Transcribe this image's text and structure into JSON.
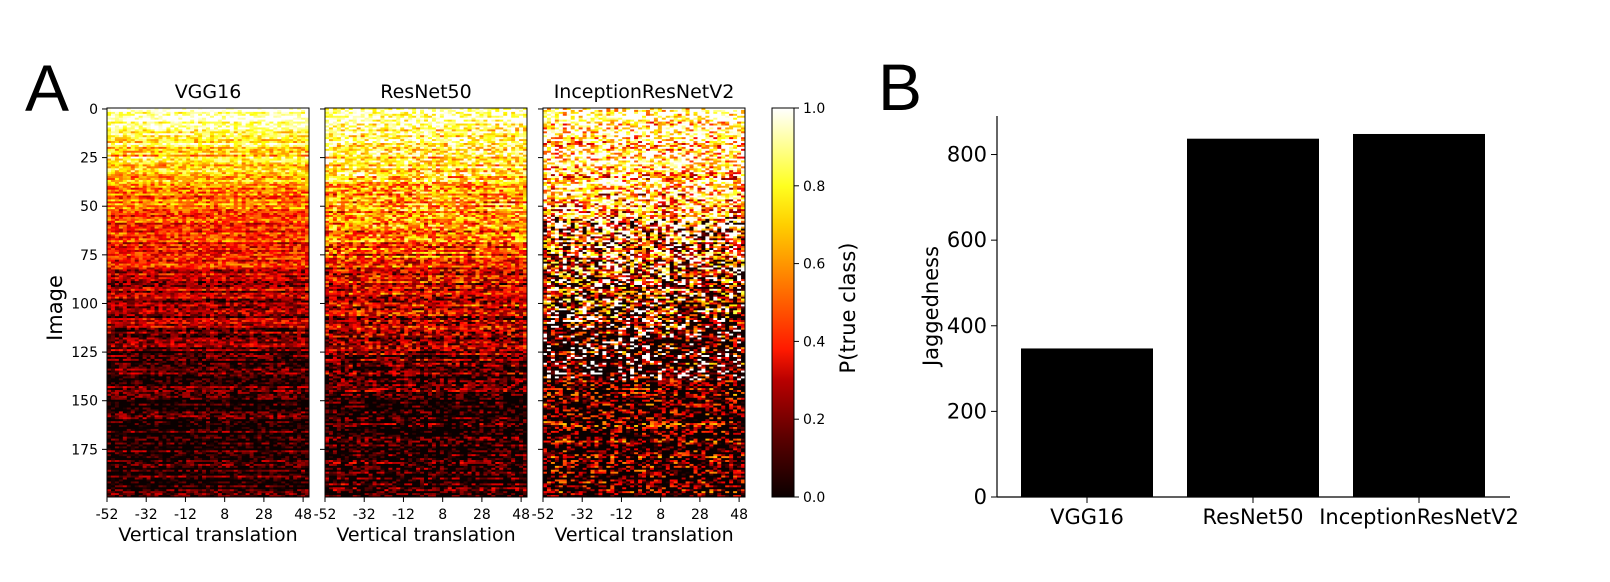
{
  "panel_labels": [
    "A",
    "B"
  ],
  "chart_data": [
    {
      "type": "heatmap",
      "panel": "A",
      "subplots": [
        {
          "title": "VGG16",
          "xlabel": "Vertical translation",
          "profile": {
            "bright_until": 30,
            "red_until": 95,
            "fade_until": 140,
            "noise": 0.18
          }
        },
        {
          "title": "ResNet50",
          "xlabel": "Vertical translation",
          "profile": {
            "bright_until": 40,
            "red_until": 110,
            "fade_until": 150,
            "noise": 0.25
          }
        },
        {
          "title": "InceptionResNetV2",
          "xlabel": "Vertical translation",
          "profile": {
            "bright_until": 60,
            "red_until": 105,
            "fade_until": 135,
            "noise": 0.5
          }
        }
      ],
      "ylabel": "Image",
      "x_ticks": [
        "-52",
        "-32",
        "-12",
        "8",
        "28",
        "48"
      ],
      "x_tick_values": [
        -52,
        -32,
        -12,
        8,
        28,
        48
      ],
      "xlim": [
        -52,
        51
      ],
      "y_ticks": [
        "0",
        "25",
        "50",
        "75",
        "100",
        "125",
        "150",
        "175"
      ],
      "y_tick_values": [
        0,
        25,
        50,
        75,
        100,
        125,
        150,
        175
      ],
      "ylim": [
        0,
        200
      ],
      "colorbar": {
        "label": "P(true class)",
        "ticks": [
          "0.0",
          "0.2",
          "0.4",
          "0.6",
          "0.8",
          "1.0"
        ],
        "tick_values": [
          0.0,
          0.2,
          0.4,
          0.6,
          0.8,
          1.0
        ],
        "range": [
          0,
          1
        ],
        "colormap": "hot"
      }
    },
    {
      "type": "bar",
      "panel": "B",
      "categories": [
        "VGG16",
        "ResNet50",
        "InceptionResNetV2"
      ],
      "values": [
        347,
        837,
        848
      ],
      "ylabel": "Jaggedness",
      "y_ticks": [
        "0",
        "200",
        "400",
        "600",
        "800"
      ],
      "y_tick_values": [
        0,
        200,
        400,
        600,
        800
      ],
      "ylim": [
        0,
        890
      ],
      "bar_color": "#000000"
    }
  ]
}
